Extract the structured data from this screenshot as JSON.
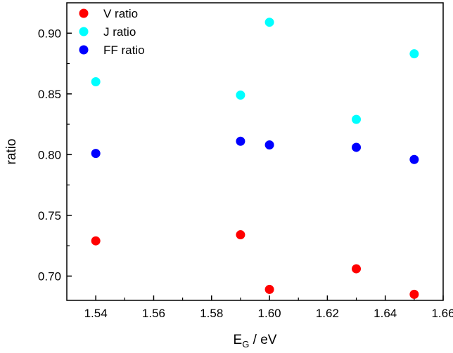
{
  "chart_data": {
    "type": "scatter",
    "xlabel_main": "E",
    "xlabel_sub": "G",
    "xlabel_rest": " / eV",
    "ylabel": "ratio",
    "xlim": [
      1.53,
      1.66
    ],
    "ylim": [
      0.68,
      0.925
    ],
    "xticks": [
      "1.54",
      "1.56",
      "1.58",
      "1.60",
      "1.62",
      "1.64",
      "1.66"
    ],
    "yticks": [
      "0.70",
      "0.75",
      "0.80",
      "0.85",
      "0.90"
    ],
    "x": [
      1.54,
      1.59,
      1.6,
      1.63,
      1.65
    ],
    "series": [
      {
        "name": "V ratio",
        "color": "#ff0000",
        "values": [
          0.729,
          0.734,
          0.689,
          0.706,
          0.685
        ]
      },
      {
        "name": "J ratio",
        "color": "#00ffff",
        "values": [
          0.86,
          0.849,
          0.909,
          0.829,
          0.883
        ]
      },
      {
        "name": "FF ratio",
        "color": "#0000ff",
        "values": [
          0.801,
          0.811,
          0.808,
          0.806,
          0.796
        ]
      }
    ],
    "legend_position": "top-left",
    "grid": false
  }
}
